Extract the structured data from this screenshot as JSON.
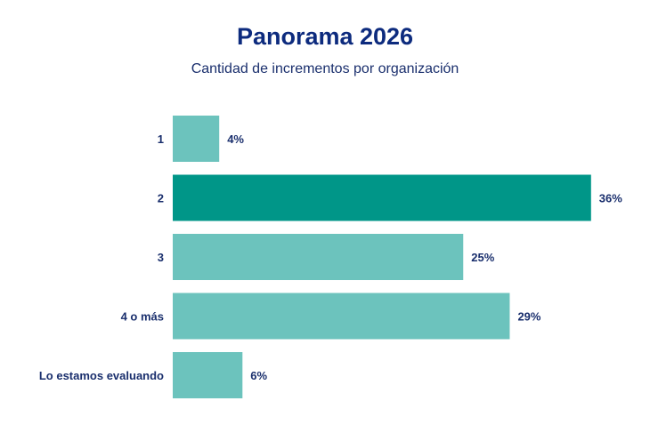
{
  "colors": {
    "title": "#0d2b7e",
    "label": "#1a2f6d",
    "bar": "#6cc3bd",
    "bar_highlight": "#009688"
  },
  "chart_data": {
    "type": "bar",
    "orientation": "horizontal",
    "title": "Panorama 2026",
    "subtitle": "Cantidad de incrementos por organización",
    "categories": [
      "1",
      "2",
      "3",
      "4 o más",
      "Lo estamos evaluando"
    ],
    "values": [
      4,
      36,
      25,
      29,
      6
    ],
    "value_labels": [
      "4%",
      "36%",
      "25%",
      "29%",
      "6%"
    ],
    "highlight_index": 1,
    "xlim": [
      0,
      36
    ],
    "grid": false,
    "legend": "none"
  }
}
